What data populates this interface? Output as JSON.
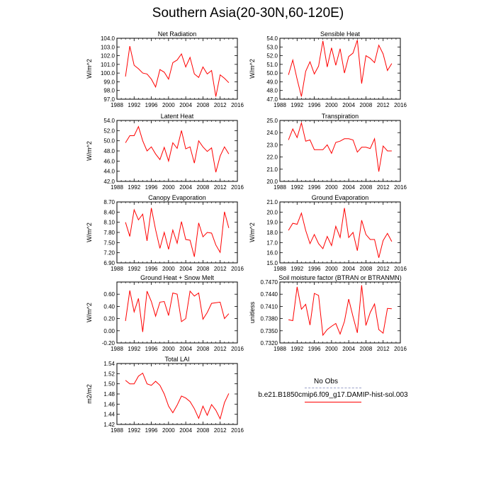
{
  "title": "Southern Asia(20-30N,60-120E)",
  "legend": {
    "obs_label": "No Obs",
    "case_label": "b.e21.B1850cmip6.f09_g17.DAMIP-hist-sol.003",
    "obs_color": "#9aa0c8",
    "case_color": "#ff0000"
  },
  "chart_data": [
    {
      "type": "line",
      "title": "Net Radiation",
      "ylabel": "W/m^2",
      "xlim": [
        1988,
        2016
      ],
      "ylim": [
        97.0,
        104.0
      ],
      "xticks": [
        "1988",
        "1992",
        "1996",
        "2000",
        "2004",
        "2008",
        "2012",
        "2016"
      ],
      "yticks": [
        "97.0",
        "98.0",
        "99.0",
        "100.0",
        "101.0",
        "102.0",
        "103.0",
        "104.0"
      ],
      "x": [
        1990,
        1991,
        1992,
        1993,
        1994,
        1995,
        1996,
        1997,
        1998,
        1999,
        2000,
        2001,
        2002,
        2003,
        2004,
        2005,
        2006,
        2007,
        2008,
        2009,
        2010,
        2011,
        2012,
        2013,
        2014
      ],
      "series": [
        {
          "values": [
            99.6,
            103.1,
            100.9,
            100.5,
            100.0,
            99.9,
            99.3,
            98.4,
            100.4,
            100.1,
            99.3,
            101.2,
            101.5,
            102.2,
            100.7,
            101.8,
            99.9,
            99.5,
            100.7,
            99.9,
            100.3,
            97.3,
            99.8,
            99.4,
            98.9
          ]
        }
      ]
    },
    {
      "type": "line",
      "title": "Sensible Heat",
      "ylabel": "W/m^2",
      "xlim": [
        1988,
        2016
      ],
      "ylim": [
        47.0,
        54.0
      ],
      "xticks": [
        "1988",
        "1992",
        "1996",
        "2000",
        "2004",
        "2008",
        "2012",
        "2016"
      ],
      "yticks": [
        "47.0",
        "48.0",
        "49.0",
        "50.0",
        "51.0",
        "52.0",
        "53.0",
        "54.0"
      ],
      "x": [
        1990,
        1991,
        1992,
        1993,
        1994,
        1995,
        1996,
        1997,
        1998,
        1999,
        2000,
        2001,
        2002,
        2003,
        2004,
        2005,
        2006,
        2007,
        2008,
        2009,
        2010,
        2011,
        2012,
        2013,
        2014
      ],
      "series": [
        {
          "values": [
            49.8,
            51.5,
            49.3,
            47.3,
            50.2,
            51.3,
            49.9,
            50.8,
            53.7,
            50.7,
            52.9,
            50.9,
            52.8,
            50.0,
            51.9,
            52.3,
            53.8,
            48.8,
            52.0,
            51.7,
            51.2,
            53.2,
            52.2,
            50.3,
            51.1
          ]
        }
      ]
    },
    {
      "type": "line",
      "title": "Latent Heat",
      "ylabel": "W/m^2",
      "xlim": [
        1988,
        2016
      ],
      "ylim": [
        42.0,
        54.0
      ],
      "xticks": [
        "1988",
        "1992",
        "1996",
        "2000",
        "2004",
        "2008",
        "2012",
        "2016"
      ],
      "yticks": [
        "42.0",
        "44.0",
        "46.0",
        "48.0",
        "50.0",
        "52.0",
        "54.0"
      ],
      "x": [
        1990,
        1991,
        1992,
        1993,
        1994,
        1995,
        1996,
        1997,
        1998,
        1999,
        2000,
        2001,
        2002,
        2003,
        2004,
        2005,
        2006,
        2007,
        2008,
        2009,
        2010,
        2011,
        2012,
        2013,
        2014
      ],
      "series": [
        {
          "values": [
            49.6,
            51.0,
            51.0,
            52.8,
            50.0,
            48.0,
            48.8,
            47.4,
            46.3,
            48.7,
            46.0,
            49.6,
            48.5,
            52.0,
            48.4,
            48.8,
            45.6,
            50.0,
            48.8,
            47.9,
            48.6,
            43.8,
            47.0,
            48.8,
            47.4
          ]
        }
      ]
    },
    {
      "type": "line",
      "title": "Transpiration",
      "ylabel": "",
      "xlim": [
        1988,
        2016
      ],
      "ylim": [
        20.0,
        25.0
      ],
      "xticks": [
        "1988",
        "1992",
        "1996",
        "2000",
        "2004",
        "2008",
        "2012",
        "2016"
      ],
      "yticks": [
        "20.0",
        "21.0",
        "22.0",
        "23.0",
        "24.0",
        "25.0"
      ],
      "x": [
        1990,
        1991,
        1992,
        1993,
        1994,
        1995,
        1996,
        1997,
        1998,
        1999,
        2000,
        2001,
        2002,
        2003,
        2004,
        2005,
        2006,
        2007,
        2008,
        2009,
        2010,
        2011,
        2012,
        2013,
        2014
      ],
      "series": [
        {
          "values": [
            23.4,
            24.3,
            23.6,
            24.8,
            23.3,
            23.4,
            22.6,
            22.6,
            22.6,
            23.0,
            22.3,
            23.2,
            23.3,
            23.5,
            23.5,
            23.4,
            22.4,
            22.8,
            22.8,
            22.7,
            23.5,
            20.8,
            22.9,
            22.5,
            22.5
          ]
        }
      ]
    },
    {
      "type": "line",
      "title": "Canopy Evaporation",
      "ylabel": "W/m^2",
      "xlim": [
        1988,
        2016
      ],
      "ylim": [
        6.9,
        8.7
      ],
      "xticks": [
        "1988",
        "1992",
        "1996",
        "2000",
        "2004",
        "2008",
        "2012",
        "2016"
      ],
      "yticks": [
        "6.90",
        "7.20",
        "7.50",
        "7.80",
        "8.10",
        "8.40",
        "8.70"
      ],
      "x": [
        1990,
        1991,
        1992,
        1993,
        1994,
        1995,
        1996,
        1997,
        1998,
        1999,
        2000,
        2001,
        2002,
        2003,
        2004,
        2005,
        2006,
        2007,
        2008,
        2009,
        2010,
        2011,
        2012,
        2013,
        2014
      ],
      "series": [
        {
          "values": [
            8.1,
            7.68,
            8.47,
            8.17,
            8.34,
            7.55,
            8.52,
            7.88,
            7.33,
            7.8,
            7.3,
            7.87,
            7.48,
            8.12,
            7.59,
            7.57,
            7.08,
            8.08,
            7.67,
            7.8,
            7.78,
            7.43,
            7.21,
            8.41,
            7.93
          ]
        }
      ]
    },
    {
      "type": "line",
      "title": "Ground Evaporation",
      "ylabel": "W/m^2",
      "xlim": [
        1988,
        2016
      ],
      "ylim": [
        15.0,
        21.0
      ],
      "xticks": [
        "1988",
        "1992",
        "1996",
        "2000",
        "2004",
        "2008",
        "2012",
        "2016"
      ],
      "yticks": [
        "15.0",
        "16.0",
        "17.0",
        "18.0",
        "19.0",
        "20.0",
        "21.0"
      ],
      "x": [
        1990,
        1991,
        1992,
        1993,
        1994,
        1995,
        1996,
        1997,
        1998,
        1999,
        2000,
        2001,
        2002,
        2003,
        2004,
        2005,
        2006,
        2007,
        2008,
        2009,
        2010,
        2011,
        2012,
        2013,
        2014
      ],
      "series": [
        {
          "values": [
            18.2,
            18.9,
            18.8,
            19.9,
            18.2,
            16.9,
            17.8,
            16.9,
            16.4,
            17.6,
            16.7,
            18.6,
            17.5,
            20.4,
            17.5,
            18.0,
            16.2,
            19.2,
            17.8,
            17.3,
            17.3,
            15.5,
            17.2,
            17.9,
            17.1
          ]
        }
      ]
    },
    {
      "type": "line",
      "title": "Ground Heat + Snow Melt",
      "ylabel": "W/m^2",
      "xlim": [
        1988,
        2016
      ],
      "ylim": [
        -0.2,
        0.8
      ],
      "xticks": [
        "1988",
        "1992",
        "1996",
        "2000",
        "2004",
        "2008",
        "2012",
        "2016"
      ],
      "yticks": [
        "-0.20",
        "0.00",
        "0.20",
        "0.40",
        "0.60"
      ],
      "x": [
        1990,
        1991,
        1992,
        1993,
        1994,
        1995,
        1996,
        1997,
        1998,
        1999,
        2000,
        2001,
        2002,
        2003,
        2004,
        2005,
        2006,
        2007,
        2008,
        2009,
        2010,
        2011,
        2012,
        2013,
        2014
      ],
      "series": [
        {
          "values": [
            0.16,
            0.66,
            0.31,
            0.53,
            -0.02,
            0.65,
            0.48,
            0.24,
            0.47,
            0.48,
            0.25,
            0.62,
            0.6,
            0.15,
            0.2,
            0.65,
            0.57,
            0.62,
            0.19,
            0.3,
            0.45,
            0.46,
            0.47,
            0.2,
            0.28
          ]
        }
      ]
    },
    {
      "type": "line",
      "title": "Soil moisture factor (BTRAN or BTRANMN)",
      "ylabel": "unitless",
      "xlim": [
        1988,
        2016
      ],
      "ylim": [
        0.732,
        0.747
      ],
      "xticks": [
        "1988",
        "1992",
        "1996",
        "2000",
        "2004",
        "2008",
        "2012",
        "2016"
      ],
      "yticks": [
        "0.7320",
        "0.7350",
        "0.7380",
        "0.7410",
        "0.7440",
        "0.7470"
      ],
      "x": [
        1990,
        1991,
        1992,
        1993,
        1994,
        1995,
        1996,
        1997,
        1998,
        1999,
        2000,
        2001,
        2002,
        2003,
        2004,
        2005,
        2006,
        2007,
        2008,
        2009,
        2010,
        2011,
        2012,
        2013,
        2014
      ],
      "series": [
        {
          "values": [
            0.7377,
            0.7375,
            0.7458,
            0.7403,
            0.7415,
            0.7364,
            0.7442,
            0.7437,
            0.7339,
            0.7353,
            0.7361,
            0.7368,
            0.7342,
            0.7373,
            0.7428,
            0.7385,
            0.7345,
            0.7462,
            0.7363,
            0.7395,
            0.7416,
            0.7353,
            0.7344,
            0.7405,
            0.7404
          ]
        }
      ]
    },
    {
      "type": "line",
      "title": "Total LAI",
      "ylabel": "m2/m2",
      "xlim": [
        1988,
        2016
      ],
      "ylim": [
        1.42,
        1.54
      ],
      "xticks": [
        "1988",
        "1992",
        "1996",
        "2000",
        "2004",
        "2008",
        "2012",
        "2016"
      ],
      "yticks": [
        "1.42",
        "1.44",
        "1.46",
        "1.48",
        "1.50",
        "1.52",
        "1.54"
      ],
      "x": [
        1990,
        1991,
        1992,
        1993,
        1994,
        1995,
        1996,
        1997,
        1998,
        1999,
        2000,
        2001,
        2002,
        2003,
        2004,
        2005,
        2006,
        2007,
        2008,
        2009,
        2010,
        2011,
        2012,
        2013,
        2014
      ],
      "series": [
        {
          "values": [
            1.507,
            1.5,
            1.5,
            1.515,
            1.521,
            1.5,
            1.497,
            1.505,
            1.497,
            1.48,
            1.456,
            1.443,
            1.458,
            1.476,
            1.472,
            1.465,
            1.451,
            1.432,
            1.456,
            1.438,
            1.459,
            1.448,
            1.431,
            1.463,
            1.481
          ]
        }
      ]
    }
  ]
}
